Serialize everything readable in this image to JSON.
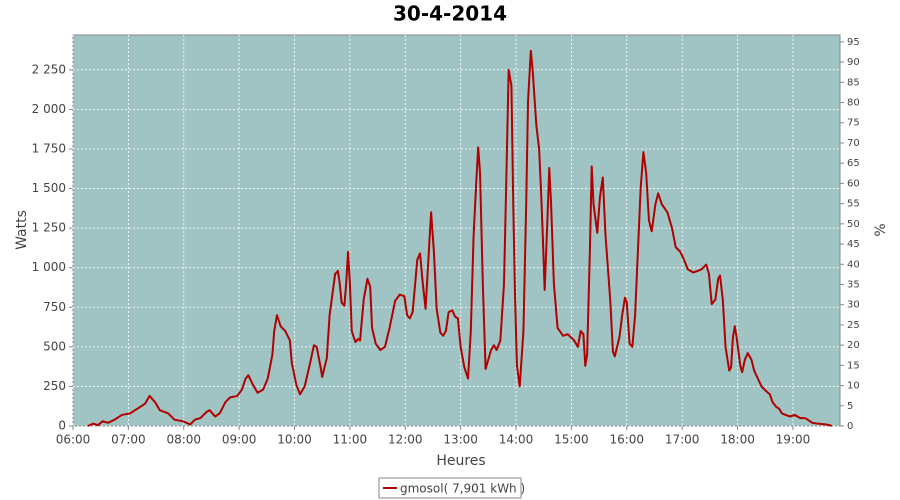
{
  "chart_data": {
    "type": "line",
    "title": "30-4-2014",
    "x_label": "Heures",
    "y_label": "Watts",
    "y2_label": "%",
    "x": [
      376,
      382,
      387,
      392,
      398,
      405,
      413,
      422,
      430,
      438,
      443,
      449,
      454,
      463,
      470,
      479,
      487,
      492,
      498,
      505,
      508,
      514,
      519,
      525,
      530,
      538,
      543,
      547,
      550,
      555,
      560,
      566,
      571,
      576,
      578,
      581,
      585,
      590,
      595,
      597,
      602,
      606,
      611,
      617,
      621,
      624,
      628,
      630,
      635,
      638,
      644,
      647,
      649,
      651,
      654,
      656,
      658,
      660,
      662,
      666,
      669,
      671,
      675,
      679,
      682,
      684,
      688,
      693,
      698,
      703,
      709,
      714,
      719,
      722,
      725,
      728,
      733,
      736,
      739,
      742,
      746,
      748,
      751,
      754,
      758,
      761,
      764,
      767,
      771,
      774,
      777,
      780,
      784,
      788,
      791,
      794,
      797,
      799,
      801,
      804,
      807,
      810,
      813,
      816,
      819,
      823,
      827,
      830,
      832,
      835,
      837,
      839,
      841,
      844,
      848,
      851,
      853,
      856,
      858,
      862,
      865,
      867,
      869,
      871,
      874,
      876,
      878,
      881,
      885,
      891,
      896,
      903,
      907,
      910,
      913,
      915,
      917,
      920,
      922,
      924,
      928,
      931,
      934,
      937,
      942,
      945,
      947,
      952,
      955,
      958,
      960,
      963,
      966,
      969,
      972,
      975,
      978,
      981,
      984,
      987,
      991,
      994,
      998,
      1004,
      1009,
      1013,
      1018,
      1022,
      1026,
      1032,
      1037,
      1041,
      1046,
      1049,
      1052,
      1056,
      1059,
      1061,
      1064,
      1067,
      1071,
      1073,
      1075,
      1077,
      1079,
      1083,
      1085,
      1088,
      1091,
      1095,
      1098,
      1102,
      1106,
      1111,
      1115,
      1118,
      1122,
      1125,
      1128,
      1132,
      1137,
      1142,
      1148,
      1153,
      1156,
      1161,
      1167,
      1175,
      1180,
      1182
    ],
    "series": [
      {
        "name": "gmosol( 7,901 kWh )",
        "color": "#b00000",
        "values": [
          0,
          15,
          5,
          30,
          20,
          40,
          70,
          80,
          110,
          140,
          190,
          150,
          100,
          80,
          40,
          30,
          10,
          40,
          50,
          90,
          100,
          60,
          80,
          150,
          180,
          190,
          230,
          300,
          320,
          260,
          210,
          230,
          300,
          450,
          600,
          700,
          630,
          600,
          540,
          400,
          260,
          200,
          250,
          400,
          510,
          500,
          380,
          310,
          430,
          700,
          960,
          980,
          900,
          780,
          760,
          900,
          1100,
          900,
          600,
          530,
          550,
          540,
          800,
          930,
          880,
          620,
          520,
          480,
          500,
          620,
          790,
          830,
          820,
          700,
          680,
          720,
          1050,
          1090,
          900,
          740,
          1150,
          1350,
          1100,
          740,
          590,
          570,
          600,
          720,
          730,
          690,
          680,
          500,
          370,
          300,
          600,
          1200,
          1550,
          1760,
          1600,
          900,
          360,
          420,
          480,
          510,
          480,
          540,
          900,
          1700,
          2250,
          2150,
          1400,
          800,
          380,
          250,
          600,
          1400,
          2050,
          2370,
          2250,
          1900,
          1750,
          1500,
          1200,
          860,
          1300,
          1630,
          1400,
          900,
          620,
          570,
          580,
          540,
          500,
          600,
          580,
          380,
          450,
          1100,
          1640,
          1400,
          1220,
          1450,
          1570,
          1200,
          800,
          470,
          440,
          560,
          700,
          810,
          780,
          520,
          500,
          700,
          1100,
          1500,
          1730,
          1600,
          1300,
          1230,
          1400,
          1470,
          1400,
          1350,
          1250,
          1130,
          1100,
          1050,
          990,
          970,
          980,
          990,
          1020,
          960,
          770,
          800,
          930,
          950,
          800,
          500,
          350,
          370,
          560,
          630,
          560,
          380,
          340,
          420,
          460,
          420,
          350,
          300,
          250,
          220,
          200,
          150,
          120,
          110,
          80,
          70,
          60,
          70,
          50,
          50,
          40,
          20,
          15,
          10,
          5,
          0
        ]
      }
    ],
    "xlim": [
      360,
      1191
    ],
    "xticks": [
      {
        "value": 360,
        "label": "06:00"
      },
      {
        "value": 420,
        "label": "07:00"
      },
      {
        "value": 480,
        "label": "08:00"
      },
      {
        "value": 540,
        "label": "09:00"
      },
      {
        "value": 600,
        "label": "10:00"
      },
      {
        "value": 660,
        "label": "11:00"
      },
      {
        "value": 720,
        "label": "12:00"
      },
      {
        "value": 780,
        "label": "13:00"
      },
      {
        "value": 840,
        "label": "14:00"
      },
      {
        "value": 900,
        "label": "15:00"
      },
      {
        "value": 960,
        "label": "16:00"
      },
      {
        "value": 1020,
        "label": "17:00"
      },
      {
        "value": 1080,
        "label": "18:00"
      },
      {
        "value": 1140,
        "label": "19:00"
      }
    ],
    "ylim": [
      0,
      2470
    ],
    "yticks": [
      0,
      250,
      500,
      750,
      {
        "value": 1000,
        "label": "1 000"
      },
      {
        "value": 1250,
        "label": "1 250"
      },
      {
        "value": 1500,
        "label": "1 500"
      },
      {
        "value": 1750,
        "label": "1 750"
      },
      {
        "value": 2000,
        "label": "2 000"
      },
      {
        "value": 2250,
        "label": "2 250"
      }
    ],
    "y2lim": [
      0,
      96.7
    ],
    "y2ticks": [
      0,
      5,
      10,
      15,
      20,
      25,
      30,
      35,
      40,
      45,
      50,
      55,
      60,
      65,
      70,
      75,
      80,
      85,
      90,
      95
    ],
    "grid": true,
    "background": "#a0c4c4",
    "legend": "bottom"
  }
}
